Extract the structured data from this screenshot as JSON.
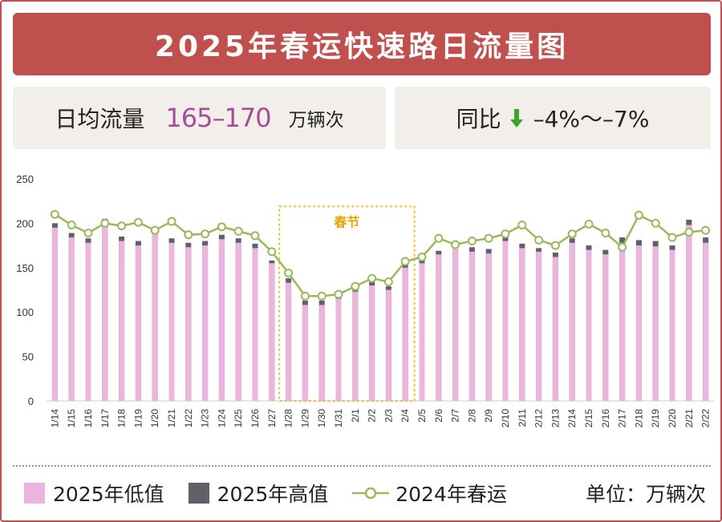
{
  "title": "2025年春运快速路日流量图",
  "left_card": {
    "label": "日均流量",
    "value": "165–170",
    "unit": "万辆次"
  },
  "right_card": {
    "label": "同比",
    "value": "–4%～–7%",
    "arrow_icon": "down-arrow-icon",
    "arrow_color": "#3aa52c"
  },
  "legend": {
    "low": "2025年低值",
    "high": "2025年高值",
    "line": "2024年春运",
    "unit": "单位：万辆次"
  },
  "colors": {
    "frame": "#c0504d",
    "low": "#ebb5de",
    "high": "#5f6068",
    "line": "#9bb85b",
    "annotation": "#f2c12e",
    "value_text": "#a64d9a"
  },
  "chart_data": {
    "type": "bar",
    "categories": [
      "1/14",
      "1/15",
      "1/16",
      "1/17",
      "1/18",
      "1/19",
      "1/20",
      "1/21",
      "1/22",
      "1/23",
      "1/24",
      "1/25",
      "1/26",
      "1/27",
      "1/28",
      "1/29",
      "1/30",
      "1/31",
      "2/1",
      "2/2",
      "2/3",
      "2/4",
      "2/5",
      "2/6",
      "2/7",
      "2/8",
      "2/9",
      "2/10",
      "2/11",
      "2/12",
      "2/13",
      "2/14",
      "2/15",
      "2/16",
      "2/17",
      "2/18",
      "2/19",
      "2/20",
      "2/21",
      "2/22"
    ],
    "series": [
      {
        "name": "2025年低值",
        "type": "bar",
        "values": [
          195,
          184,
          178,
          200,
          180,
          175,
          188,
          178,
          173,
          175,
          182,
          178,
          172,
          155,
          133,
          108,
          108,
          115,
          123,
          130,
          125,
          150,
          155,
          165,
          174,
          168,
          166,
          180,
          172,
          168,
          162,
          178,
          170,
          165,
          178,
          175,
          174,
          170,
          198,
          178
        ]
      },
      {
        "name": "2025年高值",
        "type": "bar",
        "values": [
          200,
          189,
          183,
          205,
          185,
          180,
          193,
          183,
          178,
          180,
          187,
          183,
          177,
          158,
          138,
          113,
          113,
          119,
          128,
          135,
          129,
          155,
          160,
          169,
          178,
          173,
          171,
          185,
          177,
          172,
          167,
          183,
          175,
          170,
          184,
          181,
          180,
          175,
          204,
          184
        ]
      },
      {
        "name": "2024年春运",
        "type": "line",
        "values": [
          210,
          198,
          189,
          200,
          197,
          201,
          192,
          202,
          187,
          188,
          196,
          191,
          186,
          168,
          144,
          118,
          118,
          120,
          129,
          138,
          134,
          157,
          162,
          183,
          176,
          180,
          183,
          188,
          198,
          181,
          175,
          188,
          199,
          189,
          173,
          209,
          200,
          184,
          190,
          192
        ]
      }
    ],
    "ylim": [
      0,
      250
    ],
    "yticks": [
      0,
      50,
      100,
      150,
      200,
      250
    ],
    "annotation": {
      "label": "春节",
      "from": "1/28",
      "to": "2/4"
    },
    "grid": false
  }
}
